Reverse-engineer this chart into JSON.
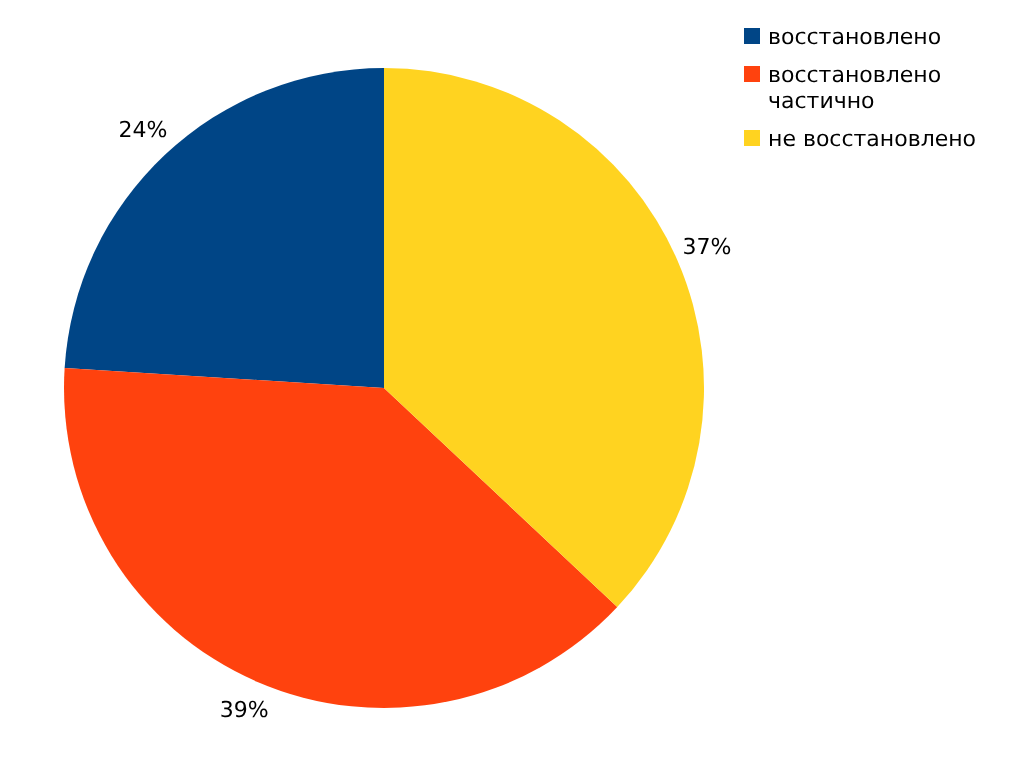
{
  "chart_data": {
    "type": "pie",
    "categories": [
      "восстановлено",
      "восстановлено частично",
      "не восстановлено"
    ],
    "values": [
      24,
      39,
      37
    ],
    "colors": [
      "#004586",
      "#ff420e",
      "#ffd320"
    ],
    "value_labels": [
      "24%",
      "39%",
      "37%"
    ],
    "legend": "top right"
  }
}
